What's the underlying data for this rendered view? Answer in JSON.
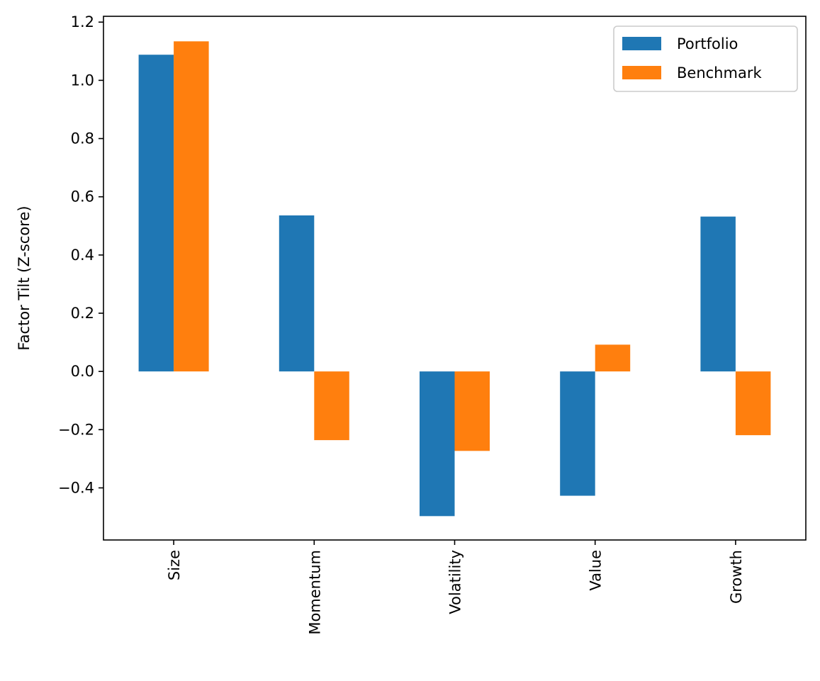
{
  "chart_data": {
    "type": "bar",
    "categories": [
      "Size",
      "Momentum",
      "Volatility",
      "Value",
      "Growth"
    ],
    "series": [
      {
        "name": "Portfolio",
        "values": [
          1.088,
          0.536,
          -0.497,
          -0.427,
          0.532
        ],
        "color": "#1f77b4"
      },
      {
        "name": "Benchmark",
        "values": [
          1.134,
          -0.236,
          -0.273,
          0.092,
          -0.219
        ],
        "color": "#ff7f0e"
      }
    ],
    "ylabel": "Factor Tilt (Z-score)",
    "xlabel": "",
    "ylim": [
      -0.579,
      1.22
    ],
    "yticks": [
      -0.4,
      -0.2,
      0.0,
      0.2,
      0.4,
      0.6,
      0.8,
      1.0,
      1.2
    ],
    "ytick_labels": [
      "−0.4",
      "−0.2",
      "0.0",
      "0.2",
      "0.4",
      "0.6",
      "0.8",
      "1.0",
      "1.2"
    ],
    "grid": false,
    "legend": "top-right"
  }
}
